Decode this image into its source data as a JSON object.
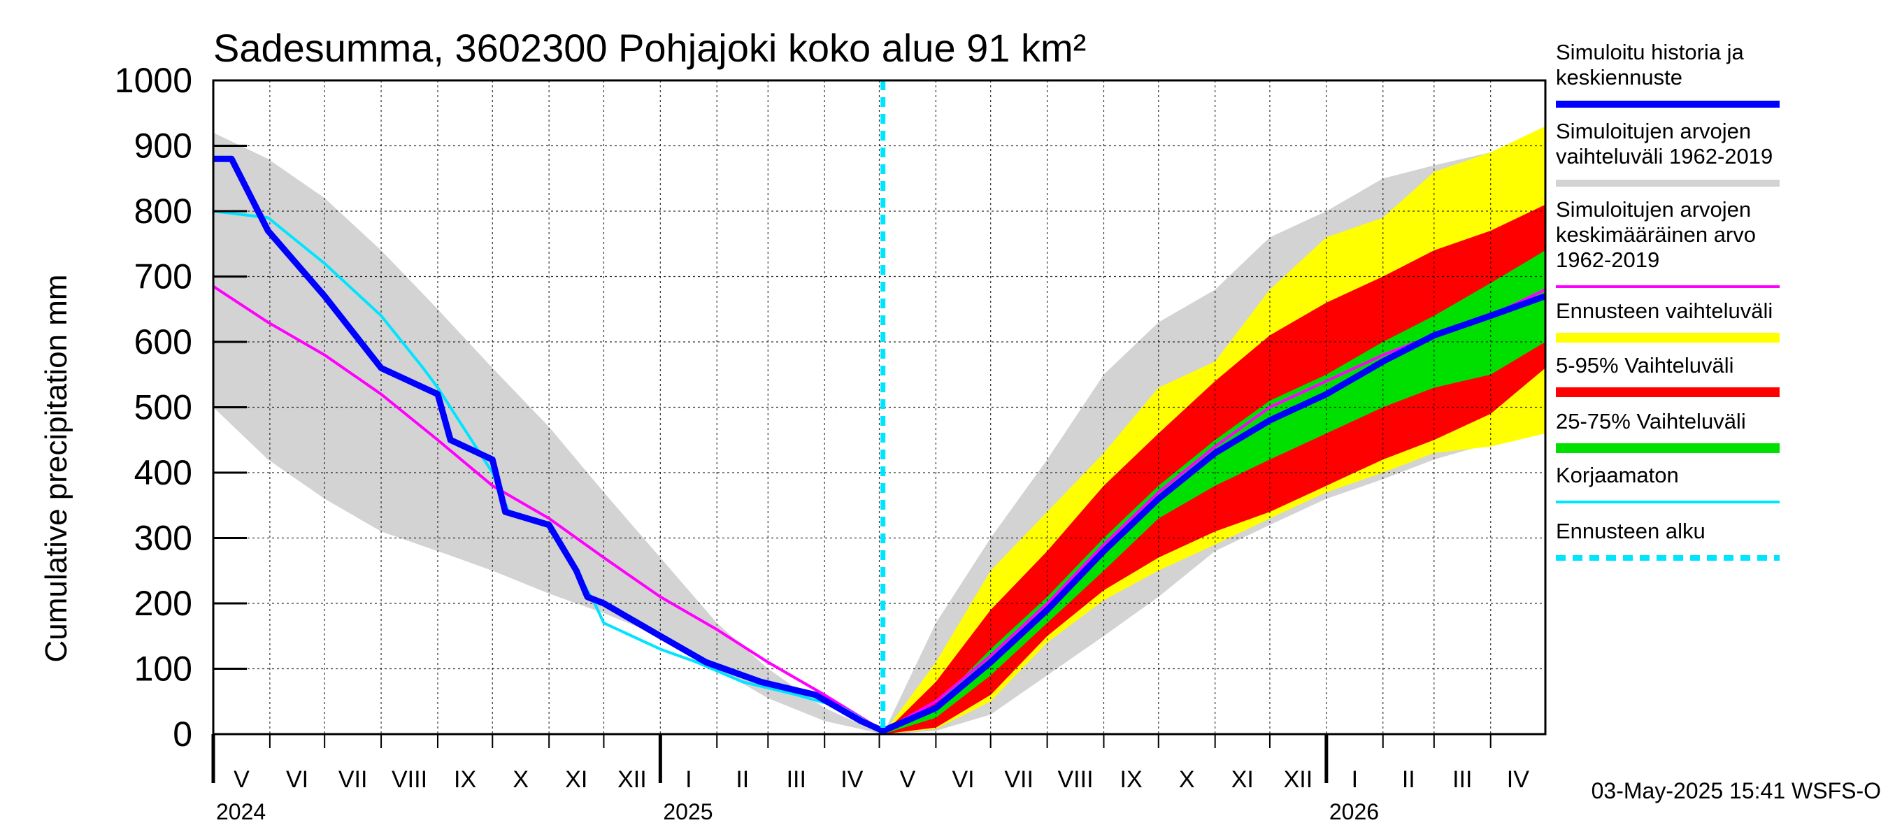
{
  "chart_data": {
    "type": "area",
    "title": "Sadesumma, 3602300 Pohjajoki koko alue 91 km²",
    "ylabel": "Cumulative precipitation   mm",
    "xlabel": "",
    "ylim": [
      0,
      1000
    ],
    "y_ticks": [
      0,
      100,
      200,
      300,
      400,
      500,
      600,
      700,
      800,
      900,
      1000
    ],
    "x_unit": "days since 2024-05-01",
    "x_range": [
      0,
      730
    ],
    "forecast_start_day": 367,
    "months": [
      {
        "label": "V",
        "start": 0,
        "end": 31
      },
      {
        "label": "VI",
        "start": 31,
        "end": 61
      },
      {
        "label": "VII",
        "start": 61,
        "end": 92
      },
      {
        "label": "VIII",
        "start": 92,
        "end": 123
      },
      {
        "label": "IX",
        "start": 123,
        "end": 153
      },
      {
        "label": "X",
        "start": 153,
        "end": 184
      },
      {
        "label": "XI",
        "start": 184,
        "end": 214
      },
      {
        "label": "XII",
        "start": 214,
        "end": 245
      },
      {
        "label": "I",
        "start": 245,
        "end": 276
      },
      {
        "label": "II",
        "start": 276,
        "end": 304
      },
      {
        "label": "III",
        "start": 304,
        "end": 335
      },
      {
        "label": "IV",
        "start": 335,
        "end": 365
      },
      {
        "label": "V",
        "start": 365,
        "end": 396
      },
      {
        "label": "VI",
        "start": 396,
        "end": 426
      },
      {
        "label": "VII",
        "start": 426,
        "end": 457
      },
      {
        "label": "VIII",
        "start": 457,
        "end": 488
      },
      {
        "label": "IX",
        "start": 488,
        "end": 518
      },
      {
        "label": "X",
        "start": 518,
        "end": 549
      },
      {
        "label": "XI",
        "start": 549,
        "end": 579
      },
      {
        "label": "XII",
        "start": 579,
        "end": 610
      },
      {
        "label": "I",
        "start": 610,
        "end": 641
      },
      {
        "label": "II",
        "start": 641,
        "end": 669
      },
      {
        "label": "III",
        "start": 669,
        "end": 700
      },
      {
        "label": "IV",
        "start": 700,
        "end": 730
      }
    ],
    "years": [
      {
        "label": "2024",
        "day": 0
      },
      {
        "label": "2025",
        "day": 245
      },
      {
        "label": "2026",
        "day": 610
      }
    ],
    "bands": [
      {
        "name": "Simuloitujen arvojen vaihteluväli 1962-2019",
        "color": "#d3d3d3",
        "x": [
          0,
          30,
          61,
          92,
          123,
          153,
          184,
          214,
          245,
          276,
          304,
          335,
          367
        ],
        "upper": [
          920,
          880,
          820,
          740,
          650,
          560,
          470,
          370,
          270,
          170,
          100,
          40,
          0
        ],
        "lower": [
          500,
          420,
          360,
          310,
          280,
          250,
          215,
          185,
          150,
          100,
          55,
          20,
          0
        ]
      },
      {
        "name": "Simuloitujen arvojen vaihteluväli 1962-2019",
        "color": "#d3d3d3",
        "x": [
          367,
          396,
          426,
          457,
          488,
          518,
          549,
          579,
          610,
          641,
          669,
          700,
          730
        ],
        "upper": [
          0,
          170,
          300,
          420,
          550,
          630,
          680,
          760,
          800,
          850,
          870,
          890,
          920
        ],
        "lower": [
          0,
          5,
          30,
          90,
          150,
          210,
          280,
          320,
          360,
          390,
          420,
          445,
          460
        ]
      },
      {
        "name": "Ennusteen vaihteluväli",
        "color": "#ffff00",
        "x": [
          367,
          396,
          426,
          457,
          488,
          518,
          549,
          579,
          610,
          641,
          669,
          700,
          730
        ],
        "upper": [
          0,
          110,
          250,
          340,
          430,
          530,
          570,
          680,
          760,
          790,
          860,
          890,
          930
        ],
        "lower": [
          0,
          8,
          50,
          140,
          205,
          250,
          290,
          330,
          370,
          400,
          430,
          440,
          460
        ]
      },
      {
        "name": "5-95% Vaihteluväli",
        "color": "#ff0000",
        "x": [
          367,
          396,
          426,
          457,
          488,
          518,
          549,
          579,
          610,
          641,
          669,
          700,
          730
        ],
        "upper": [
          0,
          80,
          190,
          280,
          380,
          460,
          540,
          610,
          660,
          700,
          740,
          770,
          810
        ],
        "lower": [
          0,
          10,
          60,
          150,
          220,
          270,
          310,
          340,
          380,
          420,
          450,
          490,
          560
        ]
      },
      {
        "name": "25-75% Vaihteluväli",
        "color": "#00e000",
        "x": [
          367,
          396,
          426,
          457,
          488,
          518,
          549,
          579,
          610,
          641,
          669,
          700,
          730
        ],
        "upper": [
          0,
          45,
          130,
          210,
          300,
          380,
          450,
          510,
          550,
          600,
          640,
          690,
          740
        ],
        "lower": [
          0,
          25,
          90,
          170,
          250,
          330,
          380,
          420,
          460,
          500,
          530,
          550,
          600
        ]
      }
    ],
    "series": [
      {
        "name": "Simuloitujen arvojen keskimääräinen arvo 1962-2019",
        "color": "#ff00ff",
        "width": 4,
        "x": [
          0,
          30,
          61,
          92,
          123,
          153,
          184,
          214,
          245,
          276,
          304,
          335,
          367,
          396,
          426,
          457,
          488,
          518,
          549,
          579,
          610,
          641,
          669,
          700,
          730
        ],
        "y": [
          685,
          630,
          580,
          520,
          450,
          380,
          330,
          270,
          210,
          160,
          110,
          60,
          5,
          50,
          120,
          200,
          290,
          370,
          440,
          500,
          540,
          580,
          610,
          640,
          680
        ]
      },
      {
        "name": "Korjaamaton",
        "color": "#00e5ff",
        "width": 4,
        "x": [
          0,
          30,
          61,
          92,
          115,
          123,
          153,
          162,
          184,
          199,
          209,
          214,
          245,
          265,
          290,
          320,
          345,
          367
        ],
        "y": [
          800,
          790,
          720,
          640,
          560,
          530,
          400,
          340,
          320,
          250,
          200,
          170,
          130,
          110,
          80,
          60,
          40,
          5
        ]
      },
      {
        "name": "Simuloitu historia ja keskiennuste",
        "color": "#0000ff",
        "width": 9,
        "x": [
          0,
          10,
          30,
          61,
          92,
          123,
          130,
          153,
          160,
          184,
          199,
          205,
          214,
          245,
          270,
          300,
          330,
          355,
          367,
          396,
          426,
          457,
          488,
          518,
          549,
          579,
          610,
          641,
          669,
          700,
          730
        ],
        "y": [
          880,
          880,
          770,
          670,
          560,
          520,
          450,
          420,
          340,
          320,
          250,
          210,
          200,
          150,
          110,
          80,
          60,
          20,
          5,
          40,
          110,
          190,
          280,
          360,
          430,
          480,
          520,
          570,
          610,
          640,
          670
        ]
      }
    ],
    "forecast_start_line": {
      "color": "#00e5ff"
    },
    "legend_position": "right"
  },
  "legend": [
    {
      "lines": [
        "Simuloitu historia ja",
        "keskiennuste"
      ],
      "color": "#0000ff",
      "style": "thick"
    },
    {
      "lines": [
        "Simuloitujen arvojen",
        "vaihteluväli 1962-2019"
      ],
      "color": "#d3d3d3",
      "style": "thick"
    },
    {
      "lines": [
        "Simuloitujen arvojen",
        "keskimääräinen arvo",
        "   1962-2019"
      ],
      "color": "#ff00ff",
      "style": "thin"
    },
    {
      "lines": [
        "Ennusteen vaihteluväli"
      ],
      "color": "#ffff00",
      "style": "block"
    },
    {
      "lines": [
        "5-95% Vaihteluväli"
      ],
      "color": "#ff0000",
      "style": "block"
    },
    {
      "lines": [
        "25-75% Vaihteluväli"
      ],
      "color": "#00e000",
      "style": "block"
    },
    {
      "lines": [
        "Korjaamaton"
      ],
      "color": "#00e5ff",
      "style": "thin"
    },
    {
      "lines": [
        "Ennusteen alku"
      ],
      "color": "#00e5ff",
      "style": "dashed"
    }
  ],
  "footer": "03-May-2025 15:41 WSFS-O"
}
